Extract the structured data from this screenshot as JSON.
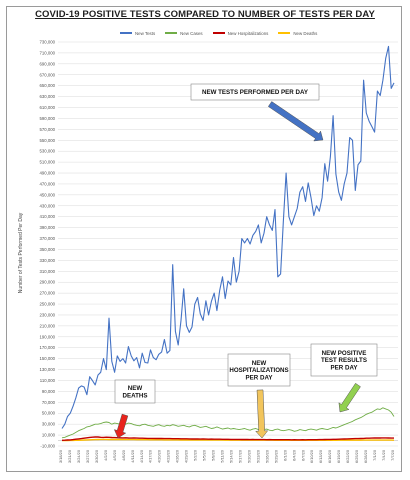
{
  "chart_data": {
    "type": "line",
    "title": "COVID-19 POSITIVE TESTS COMPARED TO NUMBER OF TESTS PER DAY",
    "xlabel": "",
    "ylabel": "Number of Tests Performed Per Day",
    "ylim": [
      -10000,
      730000
    ],
    "yticks": [
      -10000,
      10000,
      30000,
      50000,
      70000,
      90000,
      110000,
      130000,
      150000,
      170000,
      190000,
      210000,
      230000,
      250000,
      270000,
      290000,
      310000,
      330000,
      350000,
      370000,
      390000,
      410000,
      430000,
      450000,
      470000,
      490000,
      510000,
      530000,
      550000,
      570000,
      590000,
      610000,
      630000,
      650000,
      670000,
      690000,
      710000,
      730000
    ],
    "ytick_labels": [
      "-10,000",
      "10,000",
      "30,000",
      "50,000",
      "70,000",
      "90,000",
      "110,000",
      "130,000",
      "150,000",
      "170,000",
      "190,000",
      "210,000",
      "230,000",
      "250,000",
      "270,000",
      "290,000",
      "310,000",
      "330,000",
      "350,000",
      "370,000",
      "390,000",
      "410,000",
      "430,000",
      "450,000",
      "470,000",
      "490,000",
      "510,000",
      "530,000",
      "550,000",
      "570,000",
      "590,000",
      "610,000",
      "630,000",
      "650,000",
      "670,000",
      "690,000",
      "710,000",
      "730,000"
    ],
    "x_tick_labels": [
      "3/18/20",
      "3/21/20",
      "3/24/20",
      "3/27/20",
      "3/30/20",
      "4/2/20",
      "4/5/20",
      "4/8/20",
      "4/11/20",
      "4/14/20",
      "4/17/20",
      "4/20/20",
      "4/23/20",
      "4/26/20",
      "4/29/20",
      "5/2/20",
      "5/5/20",
      "5/8/20",
      "5/11/20",
      "5/14/20",
      "5/17/20",
      "5/20/20",
      "5/23/20",
      "5/26/20",
      "5/29/20",
      "6/1/20",
      "6/4/20",
      "6/7/20",
      "6/10/20",
      "6/13/20",
      "6/16/20",
      "6/19/20",
      "6/22/20",
      "6/25/20",
      "6/28/20",
      "7/1/20",
      "7/4/20",
      "7/7/20"
    ],
    "legend_position": "top",
    "grid": "horizontal",
    "series": [
      {
        "name": "New Tests",
        "color": "#4472c4",
        "values": [
          22000,
          30000,
          44000,
          50000,
          63000,
          78000,
          96000,
          100000,
          98000,
          84000,
          117000,
          110000,
          102000,
          120000,
          125000,
          150000,
          130000,
          224000,
          145000,
          125000,
          155000,
          145000,
          150000,
          142000,
          172000,
          155000,
          146000,
          152000,
          133000,
          160000,
          143000,
          142000,
          166000,
          152000,
          148000,
          158000,
          162000,
          185000,
          160000,
          165000,
          322000,
          200000,
          175000,
          220000,
          278000,
          210000,
          198000,
          208000,
          250000,
          262000,
          232000,
          220000,
          256000,
          230000,
          255000,
          270000,
          238000,
          275000,
          300000,
          260000,
          292000,
          285000,
          335000,
          290000,
          310000,
          370000,
          362000,
          370000,
          360000,
          376000,
          383000,
          395000,
          362000,
          380000,
          410000,
          395000,
          385000,
          423000,
          300000,
          305000,
          400000,
          490000,
          410000,
          395000,
          410000,
          425000,
          455000,
          465000,
          438000,
          472000,
          445000,
          412000,
          430000,
          420000,
          445000,
          507000,
          475000,
          520000,
          595000,
          488000,
          455000,
          440000,
          470000,
          490000,
          555000,
          550000,
          458000,
          505000,
          512000,
          660000,
          600000,
          585000,
          575000,
          565000,
          640000,
          632000,
          660000,
          700000,
          722000,
          645000,
          655000
        ]
      },
      {
        "name": "New Cases",
        "color": "#70ad47",
        "values": [
          5000,
          6000,
          8000,
          10000,
          12000,
          15000,
          18000,
          20000,
          22000,
          25000,
          26000,
          28000,
          30000,
          30000,
          31000,
          33000,
          34000,
          33000,
          30000,
          32000,
          31000,
          30000,
          29000,
          30000,
          32000,
          31000,
          29000,
          28000,
          27000,
          29000,
          30000,
          28000,
          27000,
          26000,
          28000,
          29000,
          27000,
          26000,
          28000,
          27000,
          29000,
          28000,
          26000,
          27000,
          28000,
          26000,
          25000,
          27000,
          28000,
          26000,
          24000,
          25000,
          26000,
          24000,
          22000,
          23000,
          25000,
          23000,
          21000,
          22000,
          23000,
          21000,
          22000,
          21000,
          20000,
          21000,
          22000,
          20000,
          19000,
          21000,
          22000,
          20000,
          19000,
          20000,
          21000,
          19000,
          18000,
          20000,
          21000,
          19000,
          18000,
          19000,
          20000,
          19000,
          17000,
          18000,
          20000,
          19000,
          18000,
          20000,
          21000,
          20000,
          19000,
          21000,
          22000,
          21000,
          20000,
          22000,
          24000,
          23000,
          25000,
          27000,
          29000,
          31000,
          33000,
          35000,
          38000,
          40000,
          42000,
          45000,
          48000,
          50000,
          52000,
          55000,
          58000,
          57000,
          60000,
          58000,
          56000,
          52000,
          44000
        ]
      },
      {
        "name": "New Hospitalizations",
        "color": "#c00000",
        "values": [
          400,
          600,
          900,
          1200,
          1800,
          2400,
          3000,
          3600,
          4200,
          5000,
          5800,
          6200,
          6500,
          6400,
          6000,
          5800,
          6200,
          6000,
          5600,
          5400,
          5200,
          5000,
          4800,
          5000,
          4700,
          4500,
          4600,
          4400,
          4200,
          4300,
          4100,
          4000,
          3900,
          4000,
          3800,
          3700,
          3800,
          3600,
          3500,
          3600,
          3400,
          3300,
          3400,
          3200,
          3100,
          3200,
          3000,
          2900,
          3000,
          2800,
          2700,
          2800,
          2600,
          2500,
          2600,
          2500,
          2400,
          2500,
          2300,
          2200,
          2300,
          2100,
          2000,
          2100,
          2000,
          1900,
          2000,
          1900,
          1800,
          1900,
          1800,
          1700,
          1800,
          1700,
          1600,
          1700,
          1600,
          1500,
          1600,
          1500,
          1500,
          1600,
          1500,
          1400,
          1500,
          1400,
          1400,
          1500,
          1400,
          1500,
          1600,
          1500,
          1600,
          1700,
          1800,
          1900,
          2000,
          2100,
          2200,
          2300,
          2500,
          2600,
          2800,
          3000,
          3100,
          3300,
          3500,
          3600,
          3800,
          4000,
          4200,
          4300,
          4500,
          4600,
          4800,
          4700,
          4900,
          4800,
          4600,
          4500,
          4400
        ]
      },
      {
        "name": "New Deaths",
        "color": "#ffc000",
        "values": [
          50,
          80,
          120,
          180,
          260,
          380,
          520,
          700,
          900,
          1100,
          1300,
          1500,
          1700,
          1900,
          2000,
          2100,
          2000,
          1900,
          2000,
          1950,
          1900,
          1850,
          1800,
          1750,
          1700,
          1750,
          1650,
          1600,
          1550,
          1600,
          1500,
          1450,
          1400,
          1450,
          1350,
          1300,
          1350,
          1250,
          1200,
          1250,
          1150,
          1100,
          1150,
          1050,
          1000,
          1050,
          1000,
          950,
          1000,
          900,
          850,
          900,
          850,
          800,
          850,
          800,
          750,
          800,
          750,
          700,
          750,
          700,
          650,
          700,
          650,
          600,
          650,
          600,
          580,
          600,
          580,
          560,
          580,
          560,
          540,
          560,
          540,
          520,
          540,
          520,
          500,
          520,
          500,
          490,
          500,
          490,
          480,
          500,
          480,
          490,
          500,
          490,
          480,
          500,
          510,
          500,
          490,
          520,
          530,
          520,
          540,
          560,
          580,
          600,
          620,
          640,
          660,
          680,
          700,
          720,
          740,
          760,
          780,
          800,
          820,
          800,
          780,
          760,
          740,
          720,
          700
        ]
      }
    ],
    "annotations": [
      {
        "lines": [
          "NEW TESTS PERFORMED PER DAY"
        ],
        "color": "#4472c4"
      },
      {
        "lines": [
          "NEW",
          "DEATHS"
        ],
        "color": "#e8231c"
      },
      {
        "lines": [
          "NEW",
          "HOSPITALIZATIONS",
          "PER DAY"
        ],
        "color": "#f2c55c"
      },
      {
        "lines": [
          "NEW POSITIVE",
          "TEST RESULTS",
          "PER DAY"
        ],
        "color": "#92d050"
      }
    ]
  }
}
